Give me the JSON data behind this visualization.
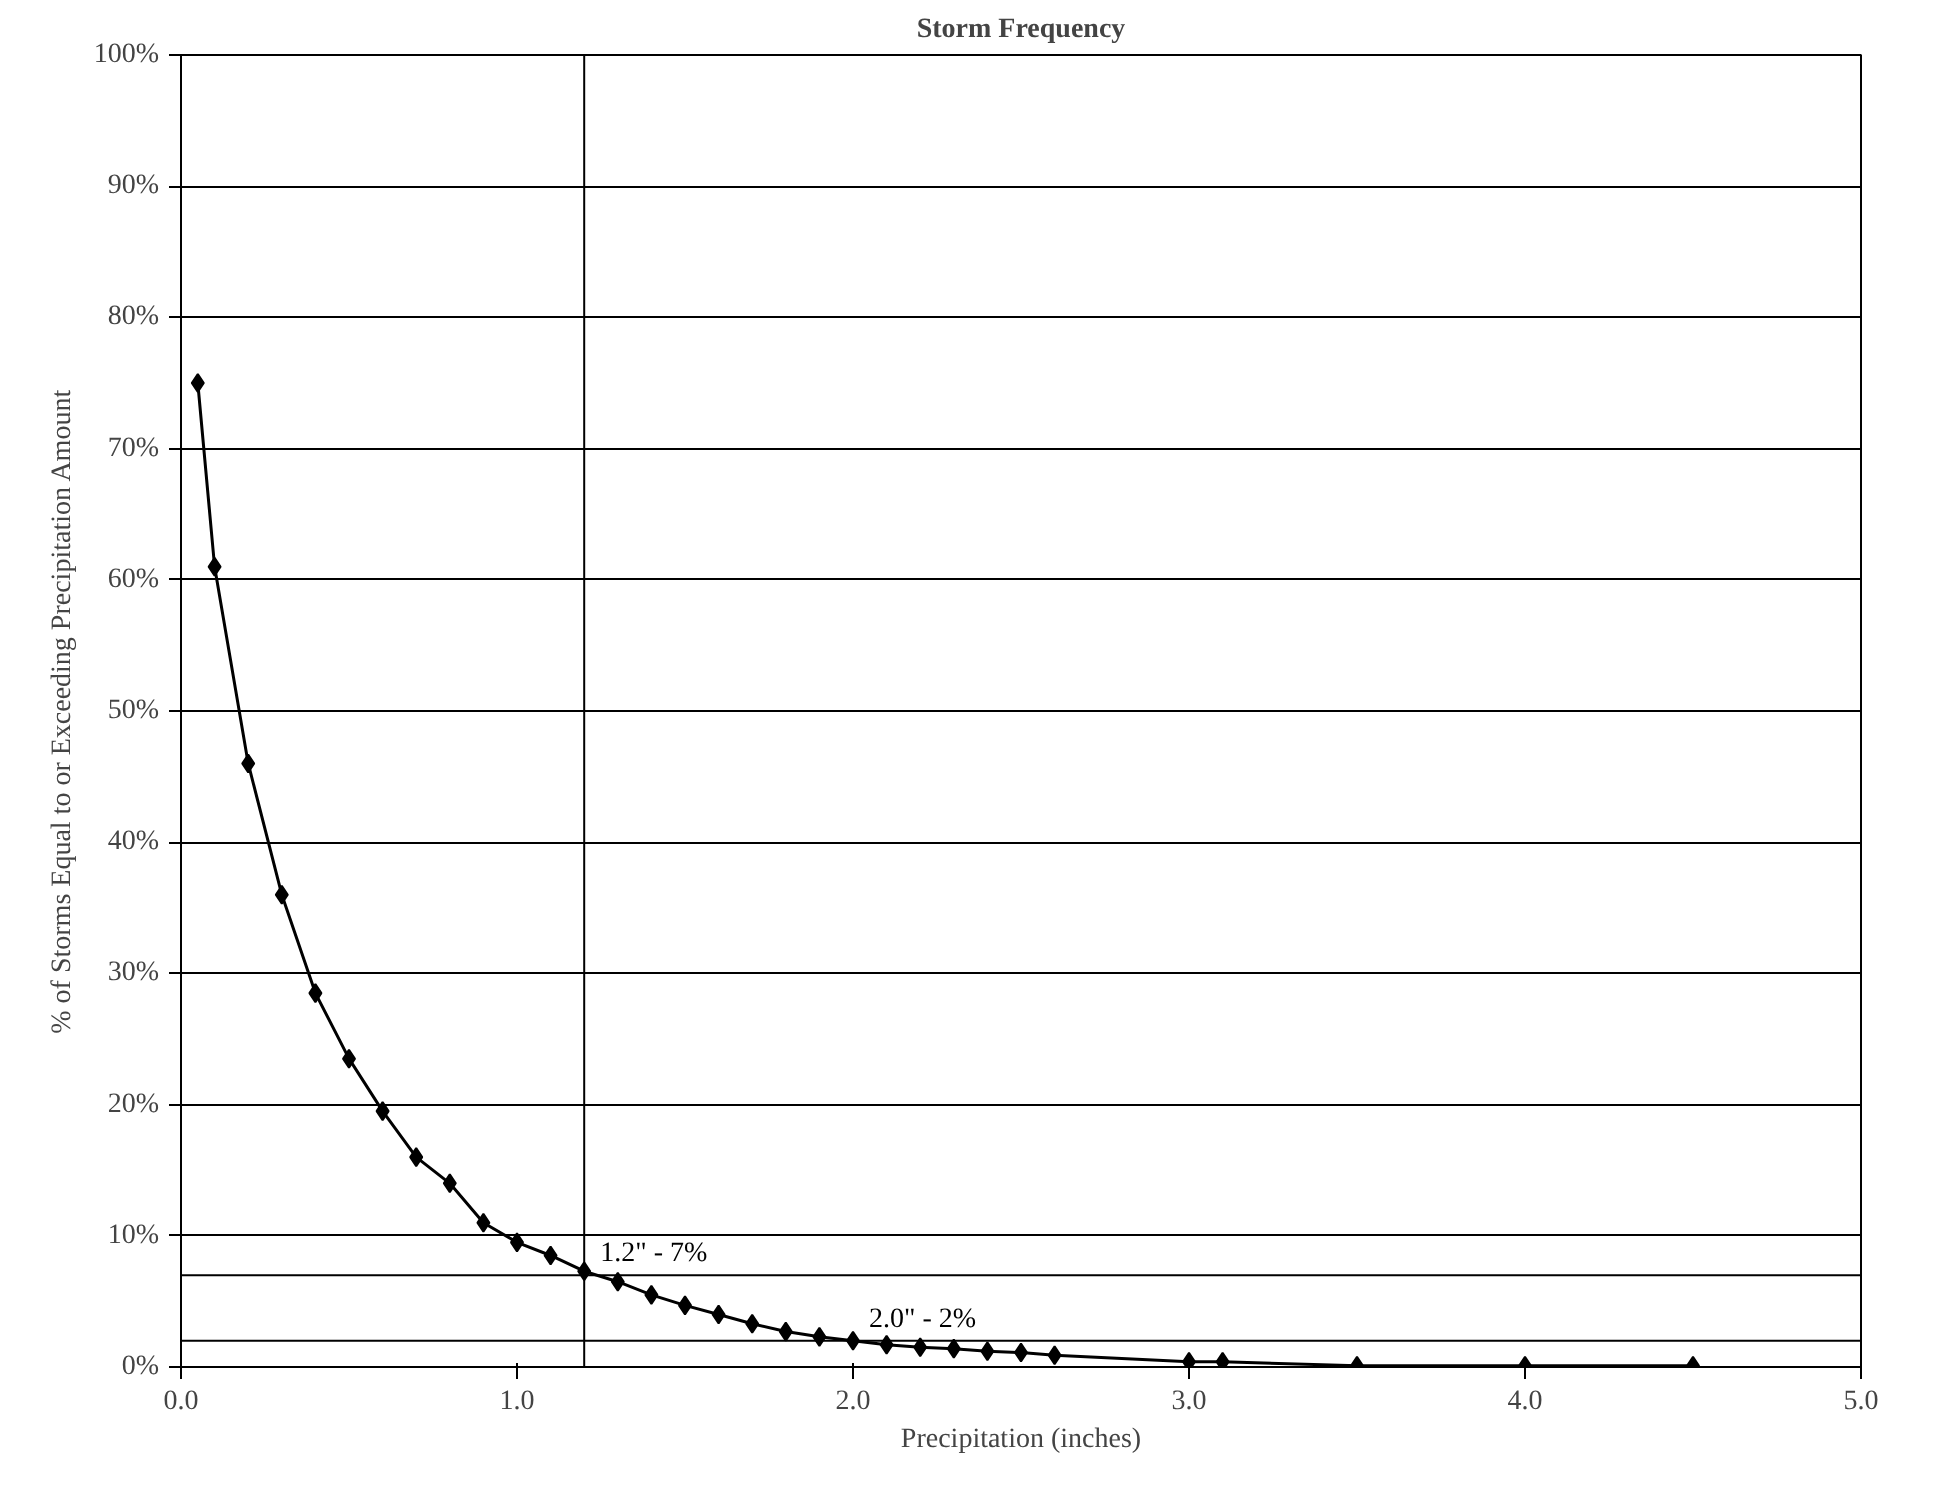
{
  "chart_data": {
    "type": "line",
    "title": "Storm Frequency",
    "xlabel": "Precipitation (inches)",
    "ylabel": "% of Storms Equal to or Exceeding Precipitation Amount",
    "x": [
      0.05,
      0.1,
      0.2,
      0.3,
      0.4,
      0.5,
      0.6,
      0.7,
      0.8,
      0.9,
      1.0,
      1.1,
      1.2,
      1.3,
      1.4,
      1.5,
      1.6,
      1.7,
      1.8,
      1.9,
      2.0,
      2.1,
      2.2,
      2.3,
      2.4,
      2.5,
      2.6,
      3.0,
      3.1,
      3.5,
      4.0,
      4.5
    ],
    "series": [
      {
        "color": "#000000",
        "values": [
          75,
          61,
          46,
          36,
          28.5,
          23.5,
          19.5,
          16,
          14,
          11,
          9.5,
          8.5,
          7.3,
          6.5,
          5.5,
          4.7,
          4,
          3.3,
          2.7,
          2.3,
          2,
          1.7,
          1.5,
          1.4,
          1.2,
          1.1,
          0.9,
          0.4,
          0.4,
          0.1,
          0.1,
          0.1
        ]
      }
    ],
    "xlim": [
      0,
      5
    ],
    "xticks": [
      {
        "value": 0,
        "label": "0.0"
      },
      {
        "value": 1,
        "label": "1.0"
      },
      {
        "value": 2,
        "label": "2.0"
      },
      {
        "value": 3,
        "label": "3.0"
      },
      {
        "value": 4,
        "label": "4.0"
      },
      {
        "value": 5,
        "label": "5.0"
      }
    ],
    "ylim": [
      0,
      100
    ],
    "yticks": [
      {
        "value": 0,
        "label": "0%"
      },
      {
        "value": 10,
        "label": "10%"
      },
      {
        "value": 20,
        "label": "20%"
      },
      {
        "value": 30,
        "label": "30%"
      },
      {
        "value": 40,
        "label": "40%"
      },
      {
        "value": 50,
        "label": "50%"
      },
      {
        "value": 60,
        "label": "60%"
      },
      {
        "value": 70,
        "label": "70%"
      },
      {
        "value": 80,
        "label": "80%"
      },
      {
        "value": 90,
        "label": "90%"
      },
      {
        "value": 100,
        "label": "100%"
      }
    ],
    "ref_lines": [
      {
        "axis": "y",
        "value": 7,
        "color": "#000000"
      },
      {
        "axis": "x",
        "value": 1.2,
        "color": "#000000"
      },
      {
        "axis": "y",
        "value": 2,
        "color": "#000000"
      }
    ],
    "annotations": [
      {
        "text": "1.2\" - 7%",
        "x": 1.2,
        "y": 7
      },
      {
        "text": "2.0\" - 2%",
        "x": 2.0,
        "y": 2
      }
    ],
    "grid": "y",
    "marker": "diamond",
    "line_style": "solid"
  }
}
